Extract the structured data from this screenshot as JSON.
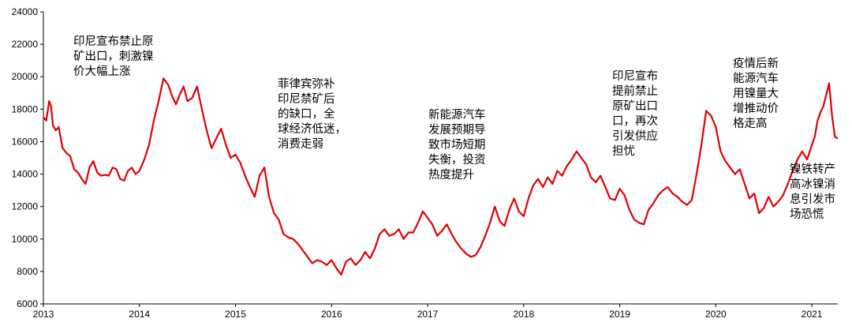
{
  "chart_data": {
    "type": "line",
    "title": "",
    "xlabel": "",
    "ylabel": "",
    "xlim": [
      2013.0,
      2021.27
    ],
    "ylim": [
      6000,
      24000
    ],
    "y_ticks": [
      6000,
      8000,
      10000,
      12000,
      14000,
      16000,
      18000,
      20000,
      22000,
      24000
    ],
    "x_ticks": [
      2013,
      2014,
      2015,
      2016,
      2017,
      2018,
      2019,
      2020,
      2021
    ],
    "grid": false,
    "legend": "none",
    "series": [
      {
        "color": "#e00000",
        "x": [
          2013.0,
          2013.03,
          2013.06,
          2013.08,
          2013.1,
          2013.13,
          2013.16,
          2013.2,
          2013.24,
          2013.28,
          2013.32,
          2013.36,
          2013.4,
          2013.44,
          2013.48,
          2013.52,
          2013.56,
          2013.6,
          2013.64,
          2013.68,
          2013.72,
          2013.76,
          2013.8,
          2013.84,
          2013.88,
          2013.92,
          2013.96,
          2014.0,
          2014.05,
          2014.1,
          2014.15,
          2014.2,
          2014.25,
          2014.3,
          2014.34,
          2014.38,
          2014.42,
          2014.46,
          2014.5,
          2014.55,
          2014.6,
          2014.65,
          2014.7,
          2014.75,
          2014.8,
          2014.85,
          2014.9,
          2014.95,
          2015.0,
          2015.05,
          2015.1,
          2015.15,
          2015.2,
          2015.25,
          2015.3,
          2015.35,
          2015.4,
          2015.45,
          2015.5,
          2015.55,
          2015.6,
          2015.65,
          2015.7,
          2015.75,
          2015.8,
          2015.85,
          2015.9,
          2015.95,
          2016.0,
          2016.05,
          2016.1,
          2016.15,
          2016.2,
          2016.25,
          2016.3,
          2016.35,
          2016.4,
          2016.45,
          2016.5,
          2016.55,
          2016.6,
          2016.65,
          2016.7,
          2016.75,
          2016.8,
          2016.85,
          2016.9,
          2016.95,
          2017.0,
          2017.05,
          2017.1,
          2017.15,
          2017.2,
          2017.25,
          2017.3,
          2017.35,
          2017.4,
          2017.45,
          2017.5,
          2017.55,
          2017.6,
          2017.65,
          2017.7,
          2017.75,
          2017.8,
          2017.85,
          2017.9,
          2017.95,
          2018.0,
          2018.05,
          2018.1,
          2018.15,
          2018.2,
          2018.25,
          2018.3,
          2018.35,
          2018.4,
          2018.45,
          2018.5,
          2018.55,
          2018.6,
          2018.65,
          2018.7,
          2018.75,
          2018.8,
          2018.85,
          2018.9,
          2018.95,
          2019.0,
          2019.05,
          2019.1,
          2019.15,
          2019.2,
          2019.25,
          2019.3,
          2019.35,
          2019.4,
          2019.45,
          2019.5,
          2019.55,
          2019.6,
          2019.65,
          2019.7,
          2019.75,
          2019.8,
          2019.85,
          2019.9,
          2019.95,
          2020.0,
          2020.05,
          2020.1,
          2020.15,
          2020.2,
          2020.25,
          2020.3,
          2020.35,
          2020.4,
          2020.45,
          2020.5,
          2020.55,
          2020.6,
          2020.65,
          2020.7,
          2020.75,
          2020.8,
          2020.85,
          2020.9,
          2020.95,
          2021.0,
          2021.03,
          2021.06,
          2021.09,
          2021.12,
          2021.15,
          2021.18,
          2021.21,
          2021.24,
          2021.27
        ],
        "values": [
          17500,
          17300,
          18500,
          18200,
          17000,
          16700,
          16900,
          15600,
          15300,
          15100,
          14300,
          14100,
          13700,
          13400,
          14400,
          14800,
          14100,
          13900,
          13950,
          13900,
          14400,
          14300,
          13700,
          13600,
          14200,
          14400,
          14000,
          14200,
          14900,
          15800,
          17300,
          18500,
          19900,
          19500,
          18800,
          18300,
          18900,
          19400,
          18500,
          18700,
          19400,
          18000,
          16700,
          15600,
          16200,
          16800,
          15800,
          15000,
          15200,
          14700,
          13900,
          13200,
          12600,
          13900,
          14400,
          12600,
          11600,
          11200,
          10300,
          10100,
          10000,
          9700,
          9300,
          8900,
          8500,
          8700,
          8600,
          8400,
          8700,
          8200,
          7800,
          8600,
          8800,
          8400,
          8700,
          9200,
          8800,
          9400,
          10300,
          10600,
          10200,
          10300,
          10600,
          10000,
          10400,
          10400,
          11000,
          11700,
          11300,
          10900,
          10200,
          10500,
          10900,
          10300,
          9800,
          9400,
          9100,
          8900,
          9000,
          9500,
          10200,
          11000,
          12000,
          11100,
          10800,
          11800,
          12500,
          11700,
          11400,
          12500,
          13300,
          13700,
          13200,
          13800,
          13400,
          14200,
          13900,
          14500,
          14900,
          15400,
          15000,
          14600,
          13800,
          13500,
          13900,
          13200,
          12500,
          12400,
          13100,
          12700,
          11800,
          11200,
          11000,
          10900,
          11800,
          12200,
          12700,
          13000,
          13200,
          12800,
          12600,
          12300,
          12100,
          12400,
          14000,
          15800,
          17900,
          17600,
          16900,
          15400,
          14800,
          14400,
          14000,
          14300,
          13400,
          12500,
          12800,
          11600,
          11900,
          12600,
          12000,
          12300,
          12700,
          13400,
          14200,
          14900,
          15400,
          14900,
          15800,
          16300,
          17300,
          17800,
          18200,
          18900,
          19600,
          17600,
          16300,
          16200
        ]
      }
    ]
  },
  "annotations": [
    {
      "lines": [
        "印尼宣布禁止原",
        "矿出口，刺激镍",
        "价大幅上涨"
      ]
    },
    {
      "lines": [
        "菲律宾弥补",
        "印尼禁矿后",
        "的缺口，全",
        "球经济低迷，",
        "消费走弱"
      ]
    },
    {
      "lines": [
        "新能源汽车",
        "发展预期导",
        "致市场短期",
        "失衡，投资",
        "热度提升"
      ]
    },
    {
      "lines": [
        "印尼宣布",
        "提前禁止",
        "原矿出口",
        "口，再次",
        "引发供应",
        "担忧"
      ]
    },
    {
      "lines": [
        "疫情后新",
        "能源汽车",
        "用镍量大",
        "增推动价",
        "格走高"
      ]
    },
    {
      "lines": [
        "镍铁转产",
        "高冰镍消",
        "息引发市",
        "场恐慌"
      ]
    }
  ]
}
